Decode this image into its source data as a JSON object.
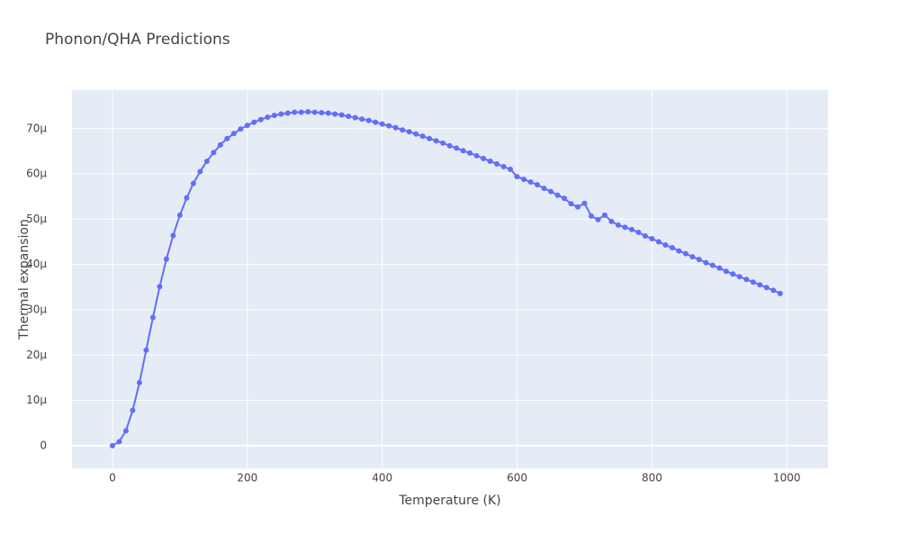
{
  "chart_data": {
    "type": "line",
    "title": "Phonon/QHA Predictions",
    "x_label": "Temperature (K)",
    "y_label": "Thermal expansion",
    "x": [
      0,
      10,
      20,
      30,
      40,
      50,
      60,
      70,
      80,
      90,
      100,
      110,
      120,
      130,
      140,
      150,
      160,
      170,
      180,
      190,
      200,
      210,
      220,
      230,
      240,
      250,
      260,
      270,
      280,
      290,
      300,
      310,
      320,
      330,
      340,
      350,
      360,
      370,
      380,
      390,
      400,
      410,
      420,
      430,
      440,
      450,
      460,
      470,
      480,
      490,
      500,
      510,
      520,
      530,
      540,
      550,
      560,
      570,
      580,
      590,
      600,
      610,
      620,
      630,
      640,
      650,
      660,
      670,
      680,
      690,
      700,
      710,
      720,
      730,
      740,
      750,
      760,
      770,
      780,
      790,
      800,
      810,
      820,
      830,
      840,
      850,
      860,
      870,
      880,
      890,
      900,
      910,
      920,
      930,
      940,
      950,
      960,
      970,
      980,
      990
    ],
    "series": [
      {
        "color": "#636efa",
        "values": [
          0,
          9e-07,
          3.3e-06,
          7.8e-06,
          1.39e-05,
          2.11e-05,
          2.83e-05,
          3.51e-05,
          4.12e-05,
          4.64e-05,
          5.09e-05,
          5.47e-05,
          5.79e-05,
          6.05e-05,
          6.28e-05,
          6.47e-05,
          6.64e-05,
          6.78e-05,
          6.89e-05,
          6.99e-05,
          7.07e-05,
          7.14e-05,
          7.2e-05,
          7.25e-05,
          7.29e-05,
          7.32e-05,
          7.34e-05,
          7.36e-05,
          7.36e-05,
          7.37e-05,
          7.36e-05,
          7.35e-05,
          7.34e-05,
          7.32e-05,
          7.3e-05,
          7.27e-05,
          7.24e-05,
          7.21e-05,
          7.18e-05,
          7.14e-05,
          7.1e-05,
          7.06e-05,
          7.02e-05,
          6.97e-05,
          6.93e-05,
          6.88e-05,
          6.83e-05,
          6.78e-05,
          6.73e-05,
          6.68e-05,
          6.62e-05,
          6.57e-05,
          6.51e-05,
          6.46e-05,
          6.4e-05,
          6.34e-05,
          6.28e-05,
          6.22e-05,
          6.16e-05,
          6.1e-05,
          5.94e-05,
          5.88e-05,
          5.82e-05,
          5.76e-05,
          5.68e-05,
          5.61e-05,
          5.53e-05,
          5.46e-05,
          5.34e-05,
          5.27e-05,
          5.35e-05,
          5.07e-05,
          4.99e-05,
          5.09e-05,
          4.95e-05,
          4.87e-05,
          4.82e-05,
          4.77e-05,
          4.71e-05,
          4.63e-05,
          4.57e-05,
          4.5e-05,
          4.43e-05,
          4.37e-05,
          4.3e-05,
          4.24e-05,
          4.17e-05,
          4.11e-05,
          4.04e-05,
          3.98e-05,
          3.92e-05,
          3.85e-05,
          3.79e-05,
          3.73e-05,
          3.67e-05,
          3.61e-05,
          3.55e-05,
          3.49e-05,
          3.43e-05,
          3.36e-05
        ]
      }
    ],
    "xlim": [
      -60,
      1061
    ],
    "xticks": [
      0,
      200,
      400,
      600,
      800,
      1000
    ],
    "ylim": [
      -5e-06,
      7.85e-05
    ],
    "yticks": [
      0,
      {
        "value": 1e-05,
        "label": "10μ"
      },
      {
        "value": 2e-05,
        "label": "20μ"
      },
      {
        "value": 3e-05,
        "label": "30μ"
      },
      {
        "value": 4e-05,
        "label": "40μ"
      },
      {
        "value": 5e-05,
        "label": "50μ"
      },
      {
        "value": 6e-05,
        "label": "60μ"
      },
      {
        "value": 7e-05,
        "label": "70μ"
      }
    ],
    "grid": true
  }
}
